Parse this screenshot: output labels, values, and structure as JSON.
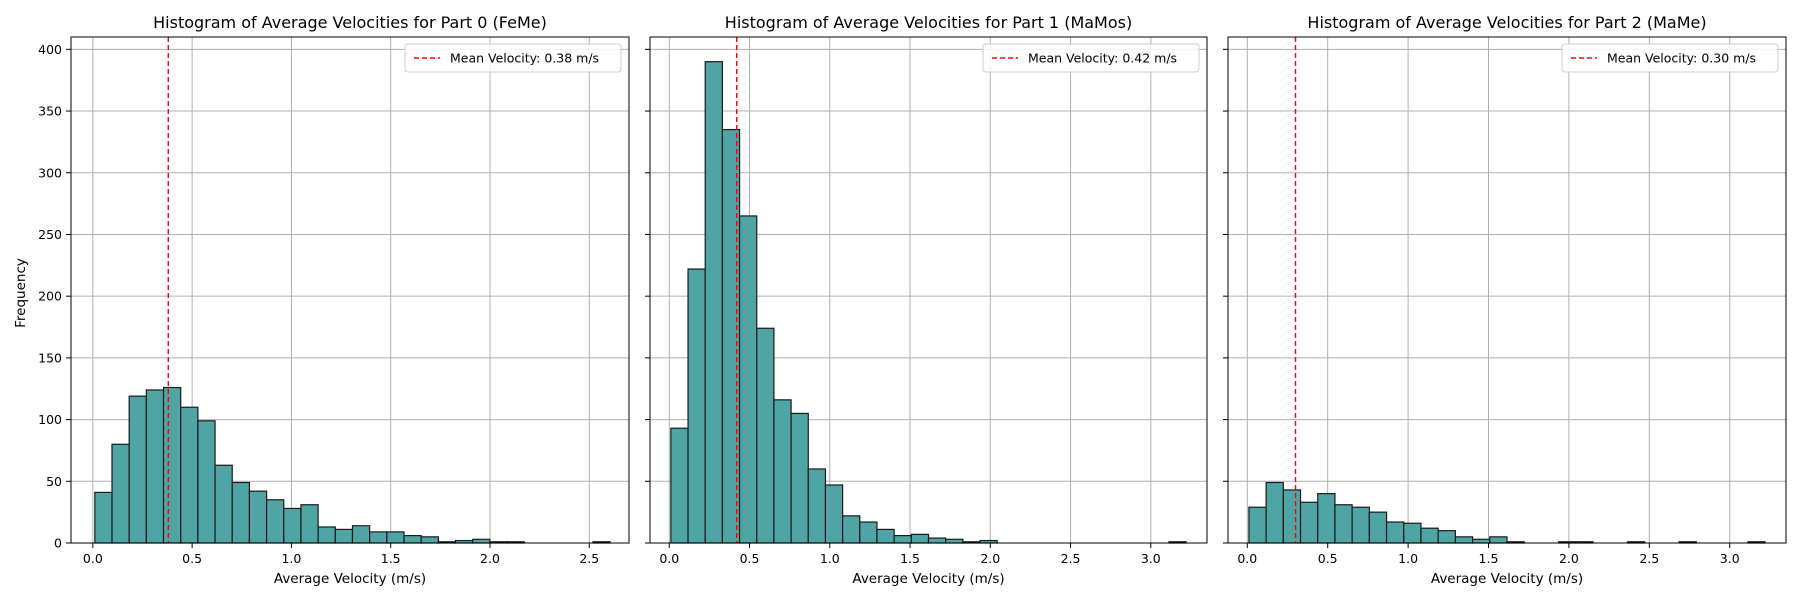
{
  "figure": {
    "ylabel": "Frequency"
  },
  "colors": {
    "bar_fill": "#4fa5a3",
    "bar_edge": "#1a1a1a",
    "mean_line": "#ff0000",
    "grid": "#b0b0b0"
  },
  "chart_data": [
    {
      "type": "bar",
      "title": "Histogram of Average Velocities for Part 0 (FeMe)",
      "xlabel": "Average Velocity (m/s)",
      "ylabel": "Frequency",
      "xlim": [
        -0.11,
        2.7
      ],
      "ylim": [
        0,
        410
      ],
      "xticks": [
        0.0,
        0.5,
        1.0,
        1.5,
        2.0,
        2.5
      ],
      "xtick_labels": [
        "0.0",
        "0.5",
        "1.0",
        "1.5",
        "2.0",
        "2.5"
      ],
      "yticks": [
        0,
        50,
        100,
        150,
        200,
        250,
        300,
        350,
        400
      ],
      "ytick_labels": [
        "0",
        "50",
        "100",
        "150",
        "200",
        "250",
        "300",
        "350",
        "400"
      ],
      "grid": true,
      "bin_start": 0.01,
      "bin_width": 0.0865,
      "counts": [
        41,
        80,
        119,
        124,
        126,
        110,
        99,
        63,
        49,
        42,
        35,
        28,
        31,
        13,
        11,
        14,
        9,
        9,
        6,
        5,
        1,
        2,
        3,
        1,
        1,
        0,
        0,
        0,
        0,
        1
      ],
      "mean": 0.38,
      "legend": {
        "position": "upper right",
        "label": "Mean Velocity: 0.38 m/s"
      }
    },
    {
      "type": "bar",
      "title": "Histogram of Average Velocities for Part 1 (MaMos)",
      "xlabel": "Average Velocity (m/s)",
      "ylabel": "",
      "xlim": [
        -0.12,
        3.35
      ],
      "ylim": [
        0,
        410
      ],
      "xticks": [
        0.0,
        0.5,
        1.0,
        1.5,
        2.0,
        2.5,
        3.0
      ],
      "xtick_labels": [
        "0.0",
        "0.5",
        "1.0",
        "1.5",
        "2.0",
        "2.5",
        "3.0"
      ],
      "yticks": [
        0,
        50,
        100,
        150,
        200,
        250,
        300,
        350,
        400
      ],
      "ytick_labels": [
        "",
        "",
        "",
        "",
        "",
        "",
        "",
        "",
        ""
      ],
      "grid": true,
      "bin_start": 0.01,
      "bin_width": 0.107,
      "counts": [
        93,
        222,
        390,
        335,
        265,
        174,
        116,
        105,
        60,
        47,
        22,
        17,
        11,
        6,
        7,
        4,
        3,
        1,
        2,
        0,
        0,
        0,
        0,
        0,
        0,
        0,
        0,
        0,
        0,
        1
      ],
      "mean": 0.42,
      "legend": {
        "position": "upper right",
        "label": "Mean Velocity: 0.42 m/s"
      }
    },
    {
      "type": "bar",
      "title": "Histogram of Average Velocities for Part 2 (MaMe)",
      "xlabel": "Average Velocity (m/s)",
      "ylabel": "",
      "xlim": [
        -0.12,
        3.35
      ],
      "ylim": [
        0,
        410
      ],
      "xticks": [
        0.0,
        0.5,
        1.0,
        1.5,
        2.0,
        2.5,
        3.0
      ],
      "xtick_labels": [
        "0.0",
        "0.5",
        "1.0",
        "1.5",
        "2.0",
        "2.5",
        "3.0"
      ],
      "yticks": [
        0,
        50,
        100,
        150,
        200,
        250,
        300,
        350,
        400
      ],
      "ytick_labels": [
        "",
        "",
        "",
        "",
        "",
        "",
        "",
        "",
        ""
      ],
      "grid": true,
      "bin_start": 0.01,
      "bin_width": 0.107,
      "counts": [
        29,
        49,
        43,
        33,
        40,
        31,
        29,
        25,
        17,
        16,
        12,
        10,
        5,
        3,
        5,
        1,
        0,
        0,
        1,
        1,
        0,
        0,
        1,
        0,
        0,
        1,
        0,
        0,
        0,
        1
      ],
      "mean": 0.3,
      "legend": {
        "position": "upper right",
        "label": "Mean Velocity: 0.30 m/s"
      }
    }
  ]
}
